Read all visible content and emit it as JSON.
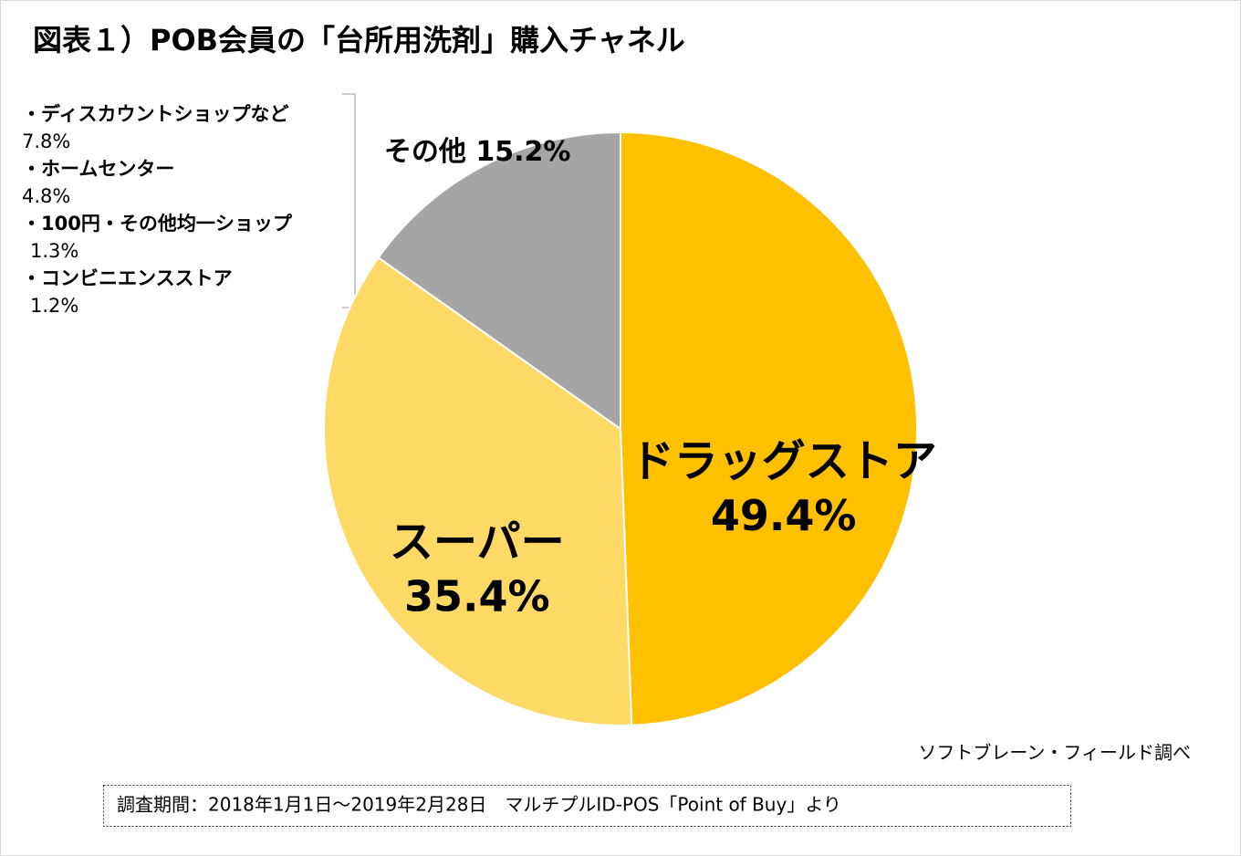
{
  "chart_data": {
    "type": "pie",
    "title": "図表１）POB会員の「台所用洗剤」購入チャネル",
    "categories": [
      "ドラッグストア",
      "スーパー",
      "その他"
    ],
    "values": [
      49.4,
      35.4,
      15.2
    ],
    "value_labels": [
      "49.4%",
      "35.4%",
      "15.2%"
    ],
    "colors": [
      "#FFC000",
      "#FFD966",
      "#A5A5A5"
    ],
    "annotation": [
      {
        "name": "・ディスカウントショップなど",
        "value": "7.8%"
      },
      {
        "name": "・ホームセンター",
        "value": "4.8%"
      },
      {
        "name": "・100円・その他均一ショップ",
        "value": "1.3%"
      },
      {
        "name": "・コンビニエンスストア",
        "value": "1.2%"
      }
    ],
    "source": "ソフトブレーン・フィールド調べ",
    "note": "調査期間：2018年1月1日～2019年2月28日　マルチプルID-POS「Point of Buy」より"
  }
}
